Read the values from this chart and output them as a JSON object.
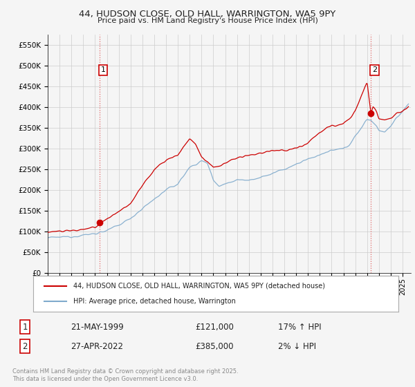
{
  "title_line1": "44, HUDSON CLOSE, OLD HALL, WARRINGTON, WA5 9PY",
  "title_line2": "Price paid vs. HM Land Registry's House Price Index (HPI)",
  "legend_label_red": "44, HUDSON CLOSE, OLD HALL, WARRINGTON, WA5 9PY (detached house)",
  "legend_label_blue": "HPI: Average price, detached house, Warrington",
  "annotation1_box": "1",
  "annotation1_date": "21-MAY-1999",
  "annotation1_price": "£121,000",
  "annotation1_hpi": "17% ↑ HPI",
  "annotation2_box": "2",
  "annotation2_date": "27-APR-2022",
  "annotation2_price": "£385,000",
  "annotation2_hpi": "2% ↓ HPI",
  "footer": "Contains HM Land Registry data © Crown copyright and database right 2025.\nThis data is licensed under the Open Government Licence v3.0.",
  "red_color": "#cc0000",
  "blue_color": "#7faacc",
  "background_color": "#f5f5f5",
  "grid_color": "#cccccc",
  "annotation_vline_color": "#dd4444",
  "ylim_min": 0,
  "ylim_max": 575000,
  "sale1_year": 1999.38,
  "sale1_price": 121000,
  "sale2_year": 2022.32,
  "sale2_price": 385000,
  "hpi_anchors_x": [
    1995,
    1995.5,
    1996,
    1997,
    1998,
    1999,
    2000,
    2001,
    2002,
    2003,
    2004,
    2005,
    2006,
    2007,
    2008,
    2008.5,
    2009,
    2009.5,
    2010,
    2011,
    2012,
    2013,
    2014,
    2015,
    2016,
    2017,
    2018,
    2019,
    2020,
    2020.5,
    2021,
    2021.5,
    2022,
    2022.3,
    2022.8,
    2023,
    2023.5,
    2024,
    2024.5,
    2025,
    2025.5
  ],
  "hpi_anchors_y": [
    85000,
    85000,
    86000,
    88000,
    91000,
    95000,
    102000,
    115000,
    132000,
    155000,
    178000,
    200000,
    215000,
    255000,
    270000,
    265000,
    225000,
    210000,
    215000,
    225000,
    225000,
    230000,
    240000,
    250000,
    262000,
    275000,
    285000,
    295000,
    300000,
    310000,
    330000,
    350000,
    370000,
    370000,
    355000,
    345000,
    340000,
    355000,
    375000,
    390000,
    405000
  ],
  "red_anchors_x": [
    1995,
    1995.5,
    1996,
    1997,
    1998,
    1999,
    1999.38,
    2000,
    2001,
    2002,
    2003,
    2004,
    2005,
    2006,
    2007,
    2007.5,
    2008,
    2008.5,
    2009,
    2009.5,
    2010,
    2011,
    2012,
    2013,
    2014,
    2015,
    2016,
    2017,
    2018,
    2019,
    2020,
    2020.5,
    2021,
    2021.5,
    2022,
    2022.32,
    2022.5,
    2022.8,
    2023,
    2023.5,
    2024,
    2024.5,
    2025,
    2025.5
  ],
  "red_anchors_y": [
    100000,
    100000,
    101000,
    102000,
    105000,
    108000,
    121000,
    130000,
    148000,
    168000,
    210000,
    250000,
    272000,
    285000,
    325000,
    310000,
    280000,
    268000,
    255000,
    258000,
    265000,
    278000,
    282000,
    290000,
    295000,
    295000,
    300000,
    315000,
    340000,
    355000,
    360000,
    370000,
    390000,
    430000,
    460000,
    385000,
    400000,
    390000,
    375000,
    370000,
    375000,
    385000,
    390000,
    400000
  ]
}
